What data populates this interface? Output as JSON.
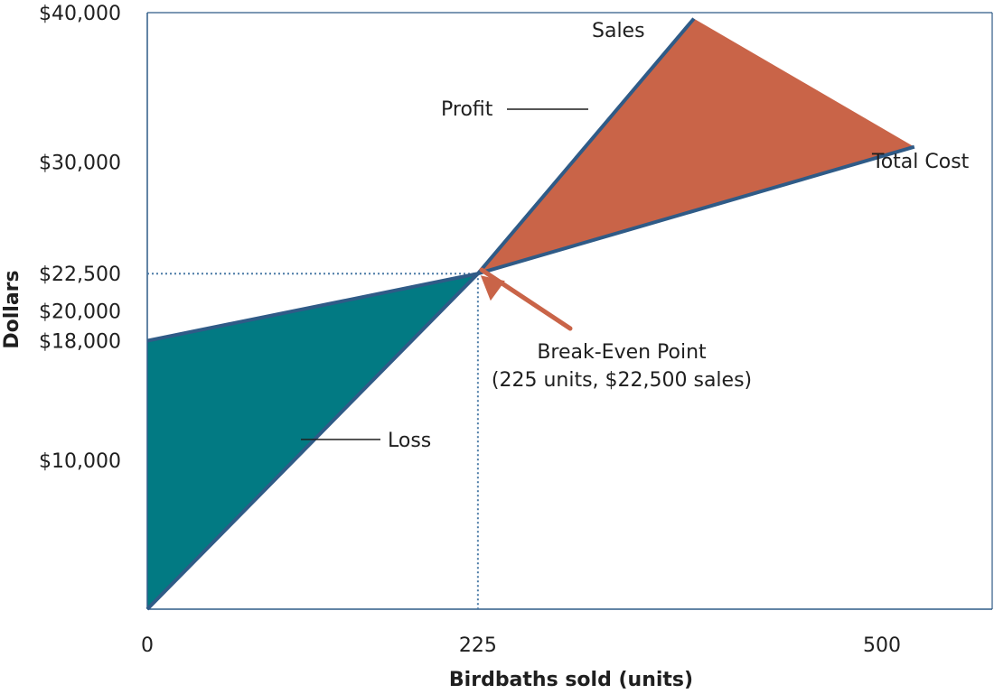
{
  "chart_data": {
    "type": "line",
    "title": "",
    "xlabel": "Birdbaths sold (units)",
    "ylabel": "Dollars",
    "xlim": [
      0,
      575
    ],
    "ylim": [
      0,
      40000
    ],
    "x_ticks": [
      {
        "value": 0,
        "label": "0"
      },
      {
        "value": 225,
        "label": "225"
      },
      {
        "value": 500,
        "label": "500"
      }
    ],
    "y_ticks": [
      {
        "value": 10000,
        "label": "$10,000"
      },
      {
        "value": 18000,
        "label": "$18,000"
      },
      {
        "value": 20000,
        "label": "$20,000"
      },
      {
        "value": 22500,
        "label": "$22,500"
      },
      {
        "value": 30000,
        "label": "$30,000"
      },
      {
        "value": 40000,
        "label": "$40,000"
      }
    ],
    "series": [
      {
        "name": "Sales",
        "x": [
          0,
          225,
          372
        ],
        "y": [
          0,
          22500,
          39600
        ]
      },
      {
        "name": "Total Cost",
        "x": [
          0,
          225,
          522
        ],
        "y": [
          18000,
          22500,
          31000
        ]
      }
    ],
    "regions": [
      {
        "name": "Loss",
        "points": [
          [
            0,
            0
          ],
          [
            225,
            22500
          ],
          [
            0,
            18000
          ]
        ]
      },
      {
        "name": "Profit",
        "points": [
          [
            225,
            22500
          ],
          [
            372,
            39600
          ],
          [
            522,
            31000
          ]
        ]
      }
    ],
    "break_even": {
      "x": 225,
      "y": 22500
    },
    "annotations": {
      "sales": "Sales",
      "total_cost": "Total Cost",
      "profit": "Profit",
      "loss": "Loss",
      "break_even_line1": "Break-Even Point",
      "break_even_line2": "(225 units, $22,500 sales)"
    },
    "colors": {
      "line": "#2f5b87",
      "loss_fill": "#027a83",
      "profit_fill": "#c96448",
      "arrow": "#c96448",
      "guide": "#4a7aa6",
      "frame": "#2f5b87"
    },
    "grid": false
  }
}
